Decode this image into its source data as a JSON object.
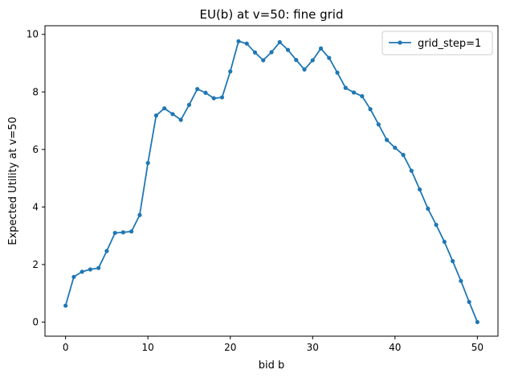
{
  "chart_data": {
    "type": "line",
    "title": "EU(b) at v=50: fine grid",
    "xlabel": "bid b",
    "ylabel": "Expected Utility at v=50",
    "xlim": [
      -2.5,
      52.5
    ],
    "ylim": [
      -0.49,
      10.3
    ],
    "x_ticks": [
      0,
      10,
      20,
      30,
      40,
      50
    ],
    "y_ticks": [
      0,
      2,
      4,
      6,
      8,
      10
    ],
    "grid": false,
    "legend_position": "upper right",
    "series": [
      {
        "name": "grid_step=1",
        "color": "#1f77b4",
        "marker": "circle",
        "x": [
          0,
          1,
          2,
          3,
          4,
          5,
          6,
          7,
          8,
          9,
          10,
          11,
          12,
          13,
          14,
          15,
          16,
          17,
          18,
          19,
          20,
          21,
          22,
          23,
          24,
          25,
          26,
          27,
          28,
          29,
          30,
          31,
          32,
          33,
          34,
          35,
          36,
          37,
          38,
          39,
          40,
          41,
          42,
          43,
          44,
          45,
          46,
          47,
          48,
          49,
          50
        ],
        "y": [
          0.57,
          1.57,
          1.75,
          1.83,
          1.88,
          2.47,
          3.1,
          3.12,
          3.15,
          3.72,
          5.53,
          7.18,
          7.43,
          7.23,
          7.03,
          7.55,
          8.1,
          7.97,
          7.78,
          7.81,
          8.71,
          9.76,
          9.68,
          9.37,
          9.1,
          9.38,
          9.73,
          9.46,
          9.11,
          8.78,
          9.1,
          9.51,
          9.18,
          8.67,
          8.14,
          7.98,
          7.85,
          7.4,
          6.87,
          6.33,
          6.06,
          5.81,
          5.26,
          4.61,
          3.94,
          3.38,
          2.79,
          2.12,
          1.43,
          0.7,
          0.0
        ]
      }
    ]
  }
}
